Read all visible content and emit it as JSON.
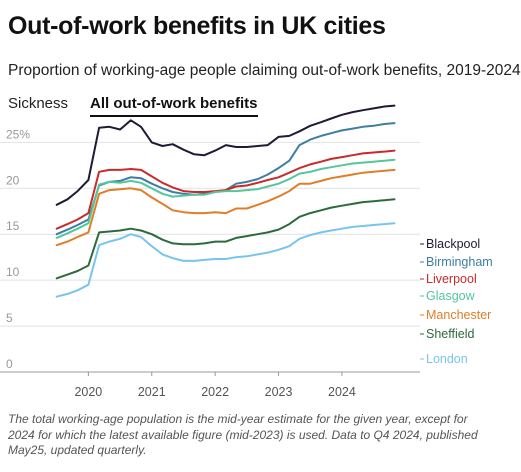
{
  "header": {
    "title": "Out-of-work benefits in UK cities",
    "subtitle": "Proportion of working-age people claiming out-of-work benefits, 2019-2024"
  },
  "tabs": [
    {
      "label": "Sickness",
      "active": false
    },
    {
      "label": "All out-of-work benefits",
      "active": true
    }
  ],
  "footnote": "The total working-age population is the mid-year estimate for the given year, except for 2024 for which the latest available figure (mid-2023) is used. Data to Q4 2024, published May25, updated quarterly.",
  "chart_data": {
    "type": "line",
    "title": "Out-of-work benefits in UK cities",
    "subtitle": "Proportion of working-age people claiming out-of-work benefits, 2019-2024",
    "xlabel": "",
    "ylabel": "",
    "xlim": [
      2019.3,
      2025.2
    ],
    "ylim": [
      0,
      27
    ],
    "yticks": [
      0,
      5,
      10,
      15,
      20,
      25
    ],
    "ytick_labels": [
      "0",
      "5",
      "10",
      "15",
      "20",
      "25%"
    ],
    "xticks": [
      2020,
      2021,
      2022,
      2023,
      2024
    ],
    "xtick_labels": [
      "2020",
      "2021",
      "2022",
      "2023",
      "2024"
    ],
    "grid": "horizontal",
    "legend": "direct labels at right end of lines",
    "x": [
      2019.5,
      2019.67,
      2019.83,
      2020.0,
      2020.17,
      2020.33,
      2020.5,
      2020.67,
      2020.83,
      2021.0,
      2021.17,
      2021.33,
      2021.5,
      2021.67,
      2021.83,
      2022.0,
      2022.17,
      2022.33,
      2022.5,
      2022.67,
      2022.83,
      2023.0,
      2023.17,
      2023.33,
      2023.5,
      2023.67,
      2023.83,
      2024.0,
      2024.17,
      2024.33,
      2024.5,
      2024.67,
      2024.83
    ],
    "series": [
      {
        "name": "Blackpool",
        "color": "#1c1c35",
        "values": [
          18.2,
          18.8,
          19.7,
          20.9,
          26.6,
          26.7,
          26.4,
          27.4,
          26.7,
          25.0,
          24.6,
          24.8,
          24.2,
          23.7,
          23.6,
          24.1,
          24.7,
          24.5,
          24.5,
          24.6,
          24.7,
          25.6,
          25.7,
          26.2,
          26.8,
          27.2,
          27.6,
          28.0,
          28.3,
          28.5,
          28.7,
          28.9,
          29.0
        ]
      },
      {
        "name": "Birmingham",
        "color": "#3d7ea1",
        "values": [
          15.0,
          15.5,
          16.0,
          16.6,
          20.3,
          20.7,
          20.8,
          21.2,
          21.1,
          20.5,
          20.0,
          19.6,
          19.4,
          19.3,
          19.4,
          19.6,
          19.8,
          20.5,
          20.7,
          21.0,
          21.5,
          22.2,
          23.0,
          24.7,
          25.3,
          25.7,
          26.0,
          26.3,
          26.5,
          26.7,
          26.8,
          27.0,
          27.1
        ]
      },
      {
        "name": "Liverpool",
        "color": "#c92a2a",
        "values": [
          15.6,
          16.1,
          16.6,
          17.3,
          21.8,
          22.0,
          22.0,
          22.1,
          22.0,
          21.3,
          20.6,
          20.1,
          19.7,
          19.6,
          19.6,
          19.7,
          19.8,
          20.2,
          20.3,
          20.6,
          20.9,
          21.2,
          21.7,
          22.2,
          22.6,
          22.9,
          23.2,
          23.4,
          23.6,
          23.8,
          23.9,
          24.0,
          24.1
        ]
      },
      {
        "name": "Glasgow",
        "color": "#54c69c",
        "values": [
          14.6,
          15.1,
          15.6,
          16.2,
          20.4,
          20.7,
          20.6,
          20.8,
          20.6,
          20.0,
          19.4,
          19.1,
          19.2,
          19.3,
          19.3,
          19.6,
          19.7,
          19.7,
          19.8,
          19.9,
          20.2,
          20.5,
          21.0,
          21.6,
          21.8,
          22.1,
          22.3,
          22.5,
          22.7,
          22.8,
          22.9,
          23.0,
          23.1
        ]
      },
      {
        "name": "Manchester",
        "color": "#e07e28",
        "values": [
          13.8,
          14.2,
          14.7,
          15.2,
          19.4,
          19.8,
          19.9,
          20.0,
          19.8,
          19.0,
          18.3,
          17.6,
          17.4,
          17.3,
          17.3,
          17.4,
          17.3,
          17.8,
          17.8,
          18.2,
          18.6,
          19.1,
          19.7,
          20.5,
          20.5,
          20.8,
          21.1,
          21.3,
          21.5,
          21.7,
          21.8,
          21.9,
          22.0
        ]
      },
      {
        "name": "Sheffield",
        "color": "#2d6a3c",
        "values": [
          10.2,
          10.6,
          11.0,
          11.6,
          15.2,
          15.3,
          15.4,
          15.6,
          15.4,
          15.0,
          14.4,
          14.0,
          13.9,
          13.9,
          14.0,
          14.2,
          14.2,
          14.6,
          14.8,
          15.0,
          15.2,
          15.5,
          16.1,
          16.9,
          17.3,
          17.6,
          17.9,
          18.1,
          18.3,
          18.5,
          18.6,
          18.7,
          18.8
        ]
      },
      {
        "name": "London",
        "color": "#78c5ec",
        "values": [
          8.2,
          8.5,
          8.9,
          9.5,
          13.8,
          14.2,
          14.5,
          15.0,
          14.7,
          13.7,
          12.8,
          12.4,
          12.1,
          12.1,
          12.2,
          12.3,
          12.3,
          12.5,
          12.6,
          12.8,
          13.0,
          13.3,
          13.7,
          14.5,
          14.9,
          15.2,
          15.4,
          15.6,
          15.8,
          15.9,
          16.0,
          16.1,
          16.2
        ]
      }
    ]
  }
}
